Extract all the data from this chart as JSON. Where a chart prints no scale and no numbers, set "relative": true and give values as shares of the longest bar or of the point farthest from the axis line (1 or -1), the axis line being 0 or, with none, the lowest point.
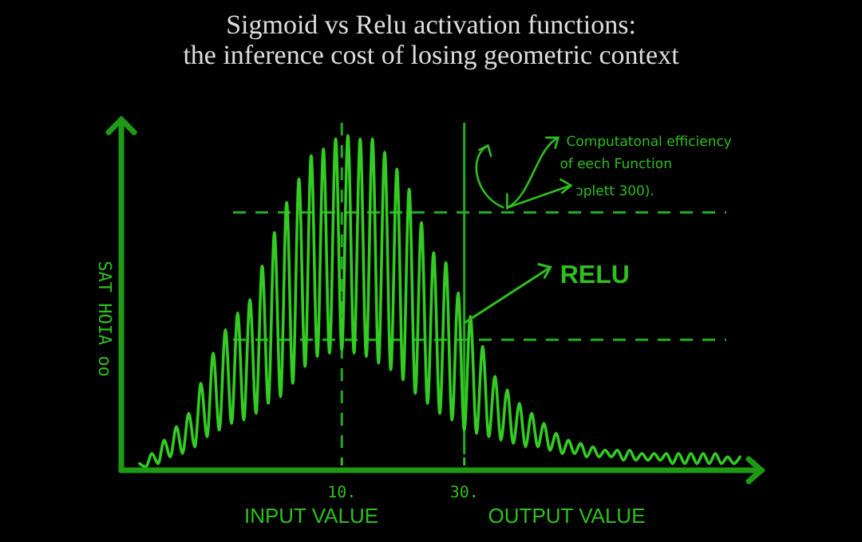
{
  "chart_data": {
    "type": "line",
    "title": "Sigmoid vs Relu activation functions:",
    "subtitle": "the inference cost of losing geometric context",
    "xlabel": "INPUT VALUE",
    "ylabel": "SAT HOIA  oo",
    "relative": true,
    "xlim": [
      -26,
      78
    ],
    "xticks": [
      {
        "value": 10,
        "label": "10."
      },
      {
        "value": 30,
        "label": "30."
      }
    ],
    "x": [
      -23,
      -22,
      -21,
      -20,
      -19,
      -18,
      -17,
      -16,
      -15,
      -14,
      -13,
      -12,
      -11,
      -10,
      -9,
      -8,
      -7,
      -6,
      -5,
      -4,
      -3,
      -2,
      -1,
      0,
      1,
      2,
      3,
      4,
      5,
      6,
      7,
      8,
      9,
      10,
      11,
      12,
      13,
      14,
      15,
      16,
      17,
      18,
      19,
      20,
      21,
      22,
      23,
      24,
      25,
      26,
      27,
      28,
      29,
      30,
      31,
      32,
      33,
      34,
      35,
      36,
      37,
      38,
      39,
      40,
      41,
      42,
      43,
      44,
      45,
      46,
      47,
      48,
      49,
      50,
      51,
      52,
      53,
      54,
      55,
      56,
      57,
      58,
      59,
      60,
      61,
      62,
      63,
      64,
      65,
      66,
      67,
      68,
      69,
      70,
      71,
      72,
      73,
      74,
      75
    ],
    "series": [
      {
        "color": "#33cc22",
        "values": [
          0.02,
          0.01,
          0.05,
          0.02,
          0.09,
          0.04,
          0.13,
          0.05,
          0.17,
          0.07,
          0.26,
          0.1,
          0.35,
          0.12,
          0.42,
          0.14,
          0.47,
          0.15,
          0.51,
          0.17,
          0.61,
          0.2,
          0.71,
          0.22,
          0.8,
          0.26,
          0.87,
          0.31,
          0.94,
          0.34,
          0.96,
          0.35,
          0.99,
          0.36,
          1.0,
          0.35,
          0.99,
          0.34,
          0.99,
          0.32,
          0.95,
          0.3,
          0.9,
          0.27,
          0.84,
          0.23,
          0.74,
          0.2,
          0.65,
          0.17,
          0.62,
          0.15,
          0.53,
          0.12,
          0.46,
          0.11,
          0.37,
          0.1,
          0.28,
          0.09,
          0.24,
          0.08,
          0.2,
          0.07,
          0.17,
          0.07,
          0.14,
          0.06,
          0.11,
          0.05,
          0.09,
          0.05,
          0.08,
          0.04,
          0.07,
          0.04,
          0.06,
          0.04,
          0.06,
          0.03,
          0.06,
          0.03,
          0.05,
          0.03,
          0.05,
          0.03,
          0.05,
          0.02,
          0.05,
          0.02,
          0.05,
          0.02,
          0.05,
          0.02,
          0.05,
          0.02,
          0.04,
          0.02,
          0.04
        ]
      }
    ],
    "ref_lines": [
      {
        "axis": "y",
        "value": 0.77,
        "color": "#22aa22",
        "line_style": "dashed"
      },
      {
        "axis": "y",
        "value": 0.39,
        "color": "#22aa22",
        "line_style": "dashed"
      },
      {
        "axis": "x",
        "value": 10,
        "color": "#22aa22",
        "line_style": "dashed"
      },
      {
        "axis": "x",
        "value": 30,
        "color": "#22aa22",
        "line_style": "solid"
      }
    ],
    "annotations": [
      {
        "text": "RELU",
        "x": 30,
        "y": 0.44
      },
      {
        "text": "Computatonal efficiency\nof eech  Function\nɔplett 300).",
        "x": 37,
        "y": 0.77
      },
      "OUTPUT VALUE"
    ]
  }
}
